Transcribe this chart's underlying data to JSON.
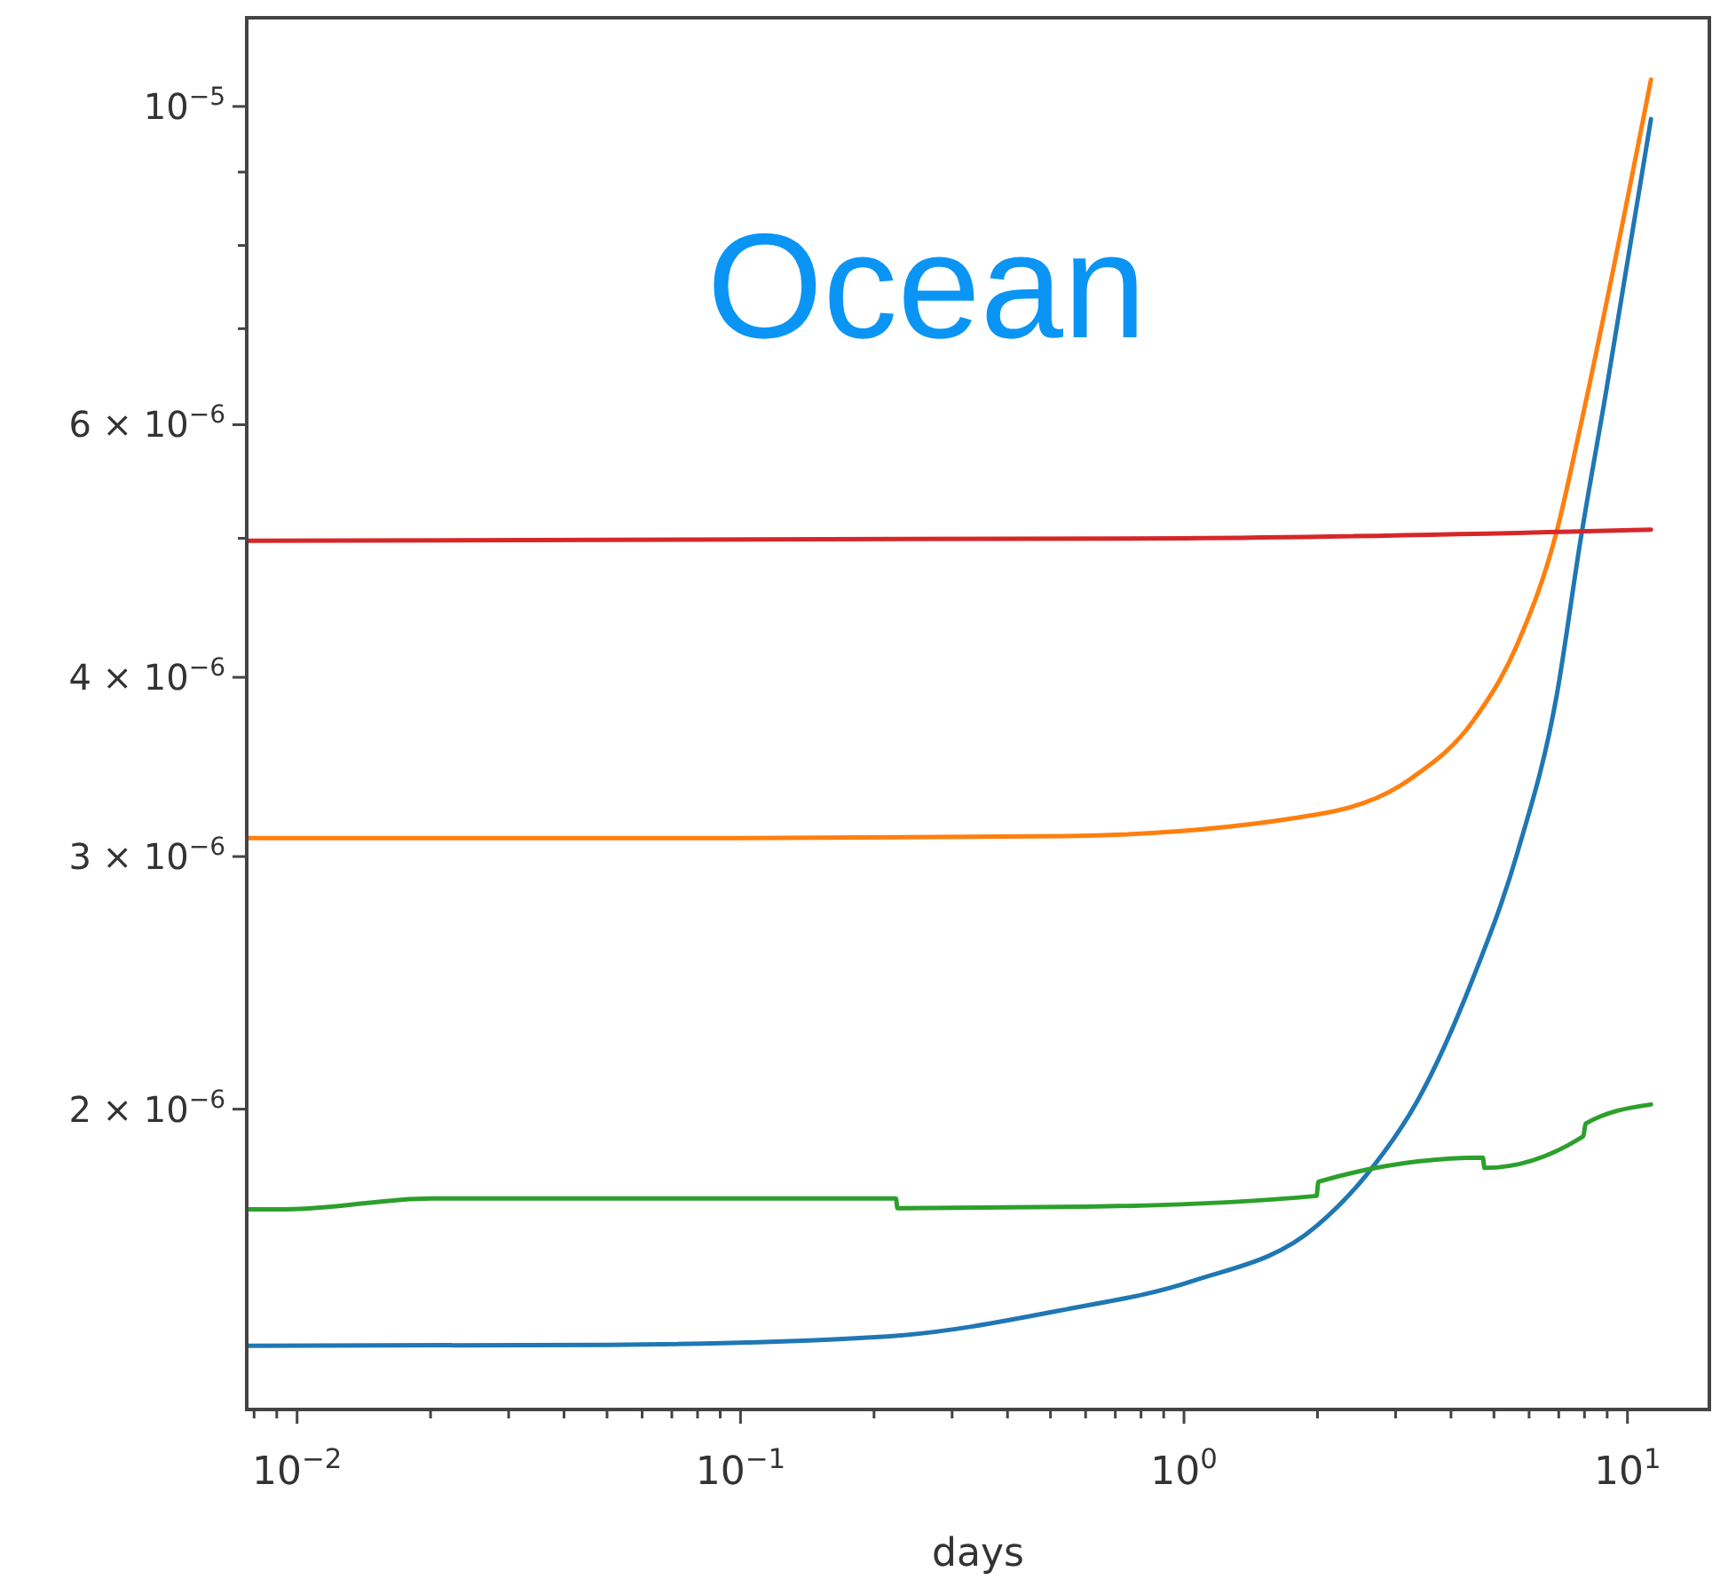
{
  "chart_data": {
    "type": "line",
    "title": "Ocean",
    "xlabel": "days",
    "log": "xy",
    "grid": false,
    "marker": "none",
    "line_style": "solid",
    "xlim": [
      0.0077,
      15.3
    ],
    "ylim": [
      1.235e-06,
      1.153e-05
    ],
    "xticks": [
      {
        "value": 0.008,
        "label": null
      },
      {
        "value": 0.009,
        "label": null
      },
      {
        "value": 0.01,
        "label": "10$^{−2}$"
      },
      {
        "value": 0.02,
        "label": null
      },
      {
        "value": 0.03,
        "label": null
      },
      {
        "value": 0.04,
        "label": null
      },
      {
        "value": 0.05,
        "label": null
      },
      {
        "value": 0.06,
        "label": null
      },
      {
        "value": 0.07,
        "label": null
      },
      {
        "value": 0.08,
        "label": null
      },
      {
        "value": 0.09,
        "label": null
      },
      {
        "value": 0.1,
        "label": "10$^{−1}$"
      },
      {
        "value": 0.2,
        "label": null
      },
      {
        "value": 0.3,
        "label": null
      },
      {
        "value": 0.4,
        "label": null
      },
      {
        "value": 0.5,
        "label": null
      },
      {
        "value": 0.6,
        "label": null
      },
      {
        "value": 0.7,
        "label": null
      },
      {
        "value": 0.8,
        "label": null
      },
      {
        "value": 0.9,
        "label": null
      },
      {
        "value": 1,
        "label": "10$^{0}$"
      },
      {
        "value": 2,
        "label": null
      },
      {
        "value": 3,
        "label": null
      },
      {
        "value": 4,
        "label": null
      },
      {
        "value": 5,
        "label": null
      },
      {
        "value": 6,
        "label": null
      },
      {
        "value": 7,
        "label": null
      },
      {
        "value": 8,
        "label": null
      },
      {
        "value": 9,
        "label": null
      },
      {
        "value": 10,
        "label": "10$^{1}$"
      }
    ],
    "yticks": [
      {
        "value": 2e-06,
        "label": "2 × 10$^{−6}$"
      },
      {
        "value": 3e-06,
        "label": "3 × 10$^{−6}$"
      },
      {
        "value": 4e-06,
        "label": "4 × 10$^{−6}$"
      },
      {
        "value": 5e-06,
        "label": null
      },
      {
        "value": 6e-06,
        "label": "6 × 10$^{−6}$"
      },
      {
        "value": 7e-06,
        "label": null
      },
      {
        "value": 8e-06,
        "label": null
      },
      {
        "value": 9e-06,
        "label": null
      },
      {
        "value": 1e-05,
        "label": "10$^{−5}$"
      }
    ],
    "series": [
      {
        "color": "#1f77b4",
        "x": [
          0.0077,
          0.05,
          0.21,
          0.54,
          1.04,
          2.0,
          2.58,
          3.37,
          4.49,
          5.65,
          6.92,
          7.85,
          8.93,
          11.3
        ],
        "values": [
          1.368e-06,
          1.37e-06,
          1.388e-06,
          1.45e-06,
          1.517e-06,
          1.66e-06,
          1.8e-06,
          2.03e-06,
          2.47e-06,
          3.02e-06,
          3.88e-06,
          5e-06,
          6.3e-06,
          9.8e-06
        ]
      },
      {
        "color": "#ff7f0e",
        "x": [
          0.0077,
          0.1,
          0.54,
          2.0,
          3.25,
          4.49,
          5.65,
          6.92,
          7.85,
          11.3
        ],
        "values": [
          3.09e-06,
          3.09e-06,
          3.1e-06,
          3.21e-06,
          3.4e-06,
          3.73e-06,
          4.22e-06,
          5.05e-06,
          6e-06,
          1.044e-05
        ]
      },
      {
        "color": "#2ca02c",
        "x": [
          0.0077,
          0.0095,
          0.02,
          0.224,
          0.226,
          0.6,
          1.99,
          2.01,
          4.72,
          4.76,
          7.95,
          8.05,
          11.3
        ],
        "values": [
          1.703e-06,
          1.703e-06,
          1.733e-06,
          1.733e-06,
          1.706e-06,
          1.71e-06,
          1.74e-06,
          1.78e-06,
          1.85e-06,
          1.82e-06,
          1.915e-06,
          1.954e-06,
          2.015e-06
        ]
      },
      {
        "color": "#d62728",
        "x": [
          0.0077,
          1.0,
          11.3
        ],
        "values": [
          4.98e-06,
          5e-06,
          5.07e-06
        ]
      }
    ]
  }
}
